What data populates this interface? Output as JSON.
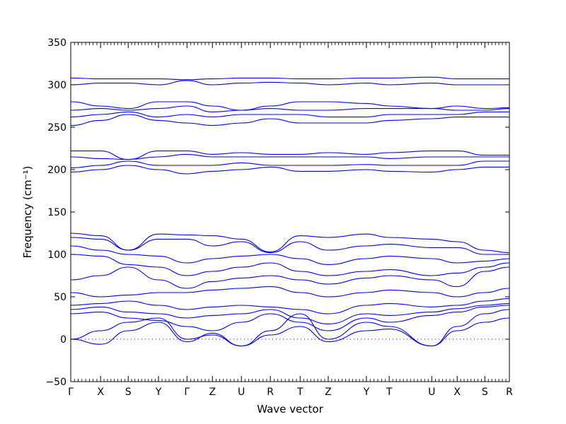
{
  "chart_data": {
    "type": "line",
    "xlabel": "Wave vector",
    "ylabel": "Frequency (cm⁻¹)",
    "ylim": [
      -50,
      350
    ],
    "yticks": [
      -50,
      0,
      50,
      100,
      150,
      200,
      250,
      300,
      350
    ],
    "grid": false,
    "line_color": "#0000ff",
    "zero_line": {
      "y": 0,
      "style": "dotted"
    },
    "xticks": [
      {
        "label": "Γ",
        "x": 0.0
      },
      {
        "label": "X",
        "x": 0.068
      },
      {
        "label": "S",
        "x": 0.131
      },
      {
        "label": "Y",
        "x": 0.2
      },
      {
        "label": "Γ",
        "x": 0.265
      },
      {
        "label": "Z",
        "x": 0.323
      },
      {
        "label": "U",
        "x": 0.389
      },
      {
        "label": "R",
        "x": 0.455
      },
      {
        "label": "T",
        "x": 0.523
      },
      {
        "label": "Z",
        "x": 0.587
      },
      {
        "label": "Y",
        "x": 0.674
      },
      {
        "label": "T",
        "x": 0.726
      },
      {
        "label": "U",
        "x": 0.823
      },
      {
        "label": "X",
        "x": 0.881
      },
      {
        "label": "S",
        "x": 0.944
      },
      {
        "label": "R",
        "x": 1.0
      }
    ],
    "series": [
      {
        "values": [
          0,
          10,
          20,
          25,
          0,
          5,
          -8,
          10,
          30,
          0,
          20,
          15,
          -8,
          10,
          20,
          25
        ]
      },
      {
        "values": [
          0,
          -6,
          10,
          20,
          -3,
          7,
          -8,
          5,
          15,
          -3,
          10,
          12,
          -8,
          15,
          30,
          35
        ]
      },
      {
        "values": [
          30,
          32,
          25,
          22,
          15,
          10,
          20,
          30,
          20,
          10,
          25,
          20,
          28,
          32,
          38,
          40
        ]
      },
      {
        "values": [
          35,
          38,
          32,
          30,
          25,
          28,
          30,
          35,
          25,
          18,
          30,
          28,
          32,
          36,
          40,
          42
        ]
      },
      {
        "values": [
          40,
          42,
          45,
          40,
          35,
          38,
          40,
          38,
          35,
          30,
          40,
          42,
          38,
          40,
          45,
          48
        ]
      },
      {
        "values": [
          55,
          50,
          52,
          55,
          55,
          58,
          60,
          62,
          55,
          50,
          55,
          58,
          55,
          50,
          55,
          60
        ]
      },
      {
        "values": [
          70,
          75,
          85,
          70,
          60,
          68,
          72,
          75,
          70,
          65,
          72,
          75,
          70,
          62,
          80,
          85
        ]
      },
      {
        "values": [
          100,
          98,
          88,
          85,
          75,
          80,
          85,
          90,
          80,
          75,
          80,
          82,
          75,
          78,
          85,
          90
        ]
      },
      {
        "values": [
          110,
          105,
          100,
          98,
          90,
          95,
          98,
          100,
          95,
          88,
          95,
          98,
          95,
          90,
          92,
          95
        ]
      },
      {
        "values": [
          120,
          118,
          105,
          118,
          118,
          110,
          115,
          102,
          115,
          105,
          110,
          112,
          108,
          108,
          100,
          100
        ]
      },
      {
        "values": [
          125,
          122,
          105,
          124,
          123,
          122,
          118,
          103,
          122,
          120,
          124,
          120,
          118,
          115,
          105,
          102
        ]
      },
      {
        "values": [
          197,
          200,
          205,
          200,
          195,
          198,
          200,
          203,
          198,
          198,
          200,
          198,
          197,
          200,
          203,
          203
        ]
      },
      {
        "values": [
          202,
          205,
          210,
          205,
          205,
          205,
          208,
          205,
          205,
          205,
          206,
          205,
          205,
          205,
          210,
          210
        ]
      },
      {
        "values": [
          215,
          213,
          212,
          215,
          218,
          215,
          215,
          215,
          215,
          215,
          215,
          213,
          215,
          215,
          215,
          215
        ]
      },
      {
        "values": [
          222,
          222,
          212,
          222,
          222,
          218,
          220,
          218,
          218,
          220,
          218,
          220,
          222,
          222,
          217,
          217
        ]
      },
      {
        "values": [
          252,
          258,
          265,
          258,
          255,
          252,
          255,
          260,
          255,
          255,
          255,
          258,
          260,
          262,
          262,
          262
        ]
      },
      {
        "values": [
          262,
          265,
          268,
          262,
          265,
          262,
          265,
          265,
          265,
          262,
          262,
          265,
          265,
          265,
          268,
          268
        ]
      },
      {
        "values": [
          270,
          272,
          270,
          272,
          275,
          268,
          270,
          272,
          270,
          270,
          272,
          272,
          272,
          270,
          270,
          272
        ]
      },
      {
        "values": [
          280,
          275,
          272,
          280,
          280,
          275,
          270,
          275,
          280,
          280,
          278,
          275,
          272,
          275,
          272,
          273
        ]
      },
      {
        "values": [
          300,
          302,
          302,
          300,
          305,
          300,
          302,
          303,
          302,
          300,
          302,
          300,
          302,
          300,
          300,
          300
        ]
      },
      {
        "values": [
          308,
          307,
          307,
          307,
          306,
          307,
          308,
          308,
          307,
          307,
          308,
          308,
          309,
          307,
          307,
          307
        ]
      }
    ]
  }
}
